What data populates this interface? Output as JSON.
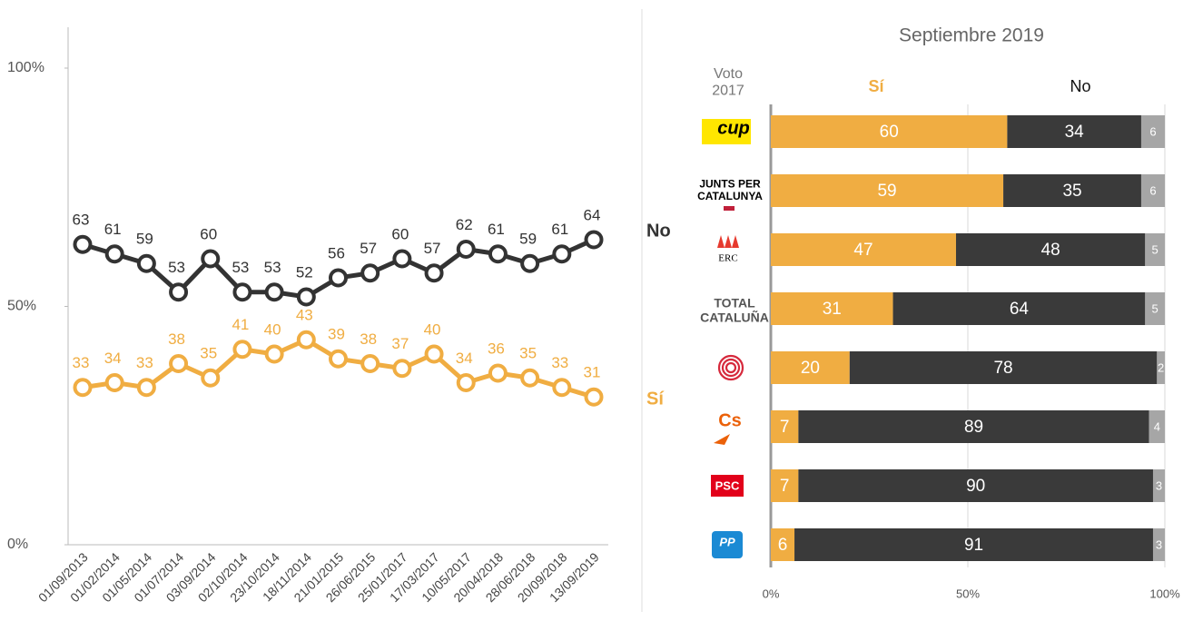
{
  "chart_data": [
    {
      "type": "line",
      "x": [
        "01/09/2013",
        "01/02/2014",
        "01/05/2014",
        "01/07/2014",
        "03/09/2014",
        "02/10/2014",
        "23/10/2014",
        "18/11/2014",
        "21/01/2015",
        "26/06/2015",
        "25/01/2017",
        "17/03/2017",
        "10/05/2017",
        "20/04/2018",
        "28/06/2018",
        "20/09/2018",
        "13/09/2019"
      ],
      "series": [
        {
          "name": "No",
          "color": "#333333",
          "values": [
            63,
            61,
            59,
            53,
            60,
            53,
            53,
            52,
            56,
            57,
            60,
            57,
            62,
            61,
            59,
            61,
            64
          ]
        },
        {
          "name": "Sí",
          "color": "#f0ad42",
          "values": [
            33,
            34,
            33,
            38,
            35,
            41,
            40,
            43,
            39,
            38,
            37,
            40,
            34,
            36,
            35,
            33,
            31
          ]
        }
      ],
      "ylim": [
        0,
        100
      ],
      "yticks": [
        {
          "value": 0,
          "label": "0%"
        },
        {
          "value": 50,
          "label": "50%"
        },
        {
          "value": 100,
          "label": "100%"
        }
      ]
    },
    {
      "type": "stacked_bar_horizontal",
      "title": "Septiembre 2019",
      "category_header": "Voto 2017",
      "categories": [
        "cup",
        "JUNTS PER CATALUNYA",
        "ERC",
        "TOTAL CATALUÑA",
        null,
        "Cs",
        "PSC",
        "PP"
      ],
      "series": [
        {
          "name": "Sí",
          "color": "#f0ad42",
          "values": [
            60,
            59,
            47,
            31,
            20,
            7,
            7,
            6
          ]
        },
        {
          "name": "No",
          "color": "#3a3a3a",
          "values": [
            34,
            35,
            48,
            64,
            78,
            89,
            90,
            91
          ]
        },
        {
          "color": "#a6a6a6",
          "values": [
            6,
            6,
            5,
            5,
            2,
            4,
            3,
            3
          ]
        }
      ],
      "xlim": [
        0,
        100
      ],
      "xticks": [
        {
          "value": 0,
          "label": "0%"
        },
        {
          "value": 50,
          "label": "50%"
        },
        {
          "value": 100,
          "label": "100%"
        }
      ]
    }
  ]
}
